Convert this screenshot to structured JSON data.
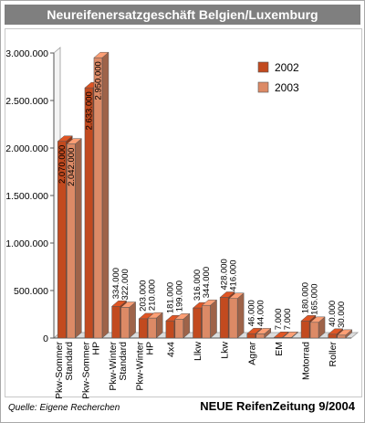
{
  "header": {
    "title": "Neureifenersatzgeschäft Belgien/Luxemburg"
  },
  "footer": {
    "source": "Quelle: Eigene Recherchen",
    "publication": "NEUE ReifenZeitung 9/2004"
  },
  "chart_data": {
    "type": "bar",
    "title": "Neureifenersatzgeschäft Belgien/Luxemburg",
    "categories": [
      "Pkw-Sommer Standard",
      "Pkw-Sommer HP",
      "Pkw-Winter Standard",
      "Pkw-Winter HP",
      "4x4",
      "Llkw",
      "Lkw",
      "Agrar",
      "EM",
      "Motorrad",
      "Roller"
    ],
    "category_lines": [
      [
        "Pkw-Sommer",
        "Standard"
      ],
      [
        "Pkw-Sommer",
        "HP"
      ],
      [
        "Pkw-Winter",
        "Standard"
      ],
      [
        "Pkw-Winter",
        "HP"
      ],
      [
        "4x4"
      ],
      [
        "Llkw"
      ],
      [
        "Lkw"
      ],
      [
        "Agrar"
      ],
      [
        "EM"
      ],
      [
        "Motorrad"
      ],
      [
        "Roller"
      ]
    ],
    "series": [
      {
        "name": "2002",
        "color": "#c24a1f",
        "values": [
          2070000,
          2633000,
          334000,
          203000,
          181000,
          316000,
          428000,
          46000,
          7000,
          180000,
          40000
        ],
        "labels": [
          "2.070.000",
          "2.633.000",
          "334.000",
          "203.000",
          "181.000",
          "316.000",
          "428.000",
          "46.000",
          "7.000",
          "180.000",
          "40.000"
        ]
      },
      {
        "name": "2003",
        "color": "#dc8a66",
        "values": [
          2042000,
          2950000,
          322000,
          210000,
          199000,
          344000,
          416000,
          44000,
          7000,
          165000,
          30000
        ],
        "labels": [
          "2.042.000",
          "2.950.000",
          "322.000",
          "210.000",
          "199.000",
          "344.000",
          "416.000",
          "44.000",
          "7.000",
          "165.000",
          "30.000"
        ]
      }
    ],
    "ylim": [
      0,
      3000000
    ],
    "yticks": [
      0,
      500000,
      1000000,
      1500000,
      2000000,
      2500000,
      3000000
    ],
    "ytick_labels": [
      "0",
      "500.000",
      "1.000.000",
      "1.500.000",
      "2.000.000",
      "2.500.000",
      "3.000.000"
    ],
    "legend_position": "top-right",
    "grid": false
  }
}
